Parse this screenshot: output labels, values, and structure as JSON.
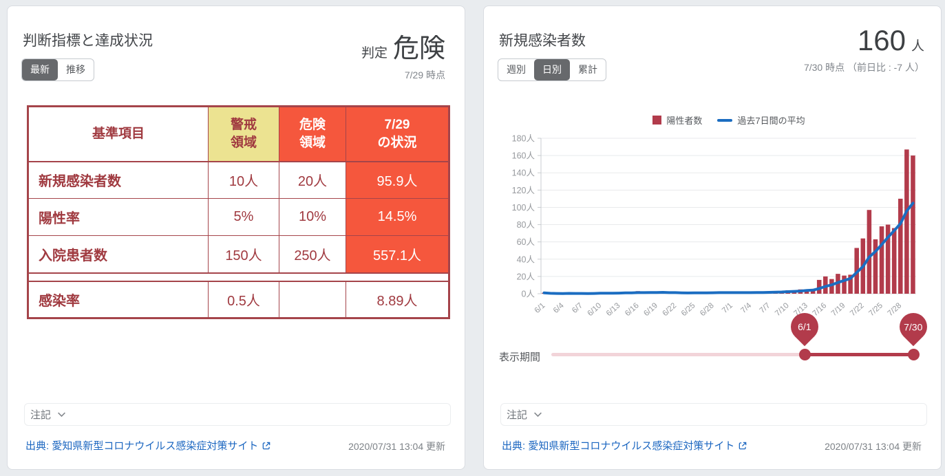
{
  "page": {
    "background": "#e9ecef"
  },
  "left_panel": {
    "title": "判断指標と達成状況",
    "view_tabs": [
      {
        "label": "最新",
        "selected": true
      },
      {
        "label": "推移",
        "selected": false
      }
    ],
    "verdict": {
      "label": "判定",
      "value": "危険",
      "as_of": "7/29 時点"
    },
    "table": {
      "headers": [
        {
          "label": "基準項目",
          "style": "plain"
        },
        {
          "label": "警戒\n領域",
          "style": "yellow"
        },
        {
          "label": "危険\n領域",
          "style": "orange"
        },
        {
          "label": "7/29\nの状況",
          "style": "orange"
        }
      ],
      "rows": [
        {
          "label": "新規感染者数",
          "warning": "10人",
          "danger": "20人",
          "current": "95.9人",
          "current_highlight": true,
          "separator_before": false
        },
        {
          "label": "陽性率",
          "warning": "5%",
          "danger": "10%",
          "current": "14.5%",
          "current_highlight": true,
          "separator_before": false
        },
        {
          "label": "入院患者数",
          "warning": "150人",
          "danger": "250人",
          "current": "557.1人",
          "current_highlight": true,
          "separator_before": false
        },
        {
          "label": "感染率",
          "warning": "0.5人",
          "danger": "",
          "current": "8.89人",
          "current_highlight": false,
          "separator_before": true
        }
      ]
    },
    "note_label": "注記",
    "source_text": "出典: 愛知県新型コロナウイルス感染症対策サイト",
    "updated": "2020/07/31 13:04 更新"
  },
  "right_panel": {
    "title": "新規感染者数",
    "view_tabs": [
      {
        "label": "週別",
        "selected": false
      },
      {
        "label": "日別",
        "selected": true
      },
      {
        "label": "累計",
        "selected": false
      }
    ],
    "headline": {
      "value": "160",
      "unit": "人",
      "as_of": "7/30 時点 （前日比 : -7 人）"
    },
    "legend": [
      {
        "label": "陽性者数",
        "marker": "square",
        "color": "#b23b4b"
      },
      {
        "label": "過去7日間の平均",
        "marker": "line",
        "color": "#1b6dc1"
      }
    ],
    "slider": {
      "label": "表示期間",
      "start_label": "6/1",
      "end_label": "7/30"
    },
    "note_label": "注記",
    "source_text": "出典: 愛知県新型コロナウイルス感染症対策サイト",
    "updated": "2020/07/31 13:04 更新"
  },
  "chart_data": {
    "type": "bar",
    "title": "新規感染者数",
    "x": [
      "6/1",
      "6/2",
      "6/3",
      "6/4",
      "6/5",
      "6/6",
      "6/7",
      "6/8",
      "6/9",
      "6/10",
      "6/11",
      "6/12",
      "6/13",
      "6/14",
      "6/15",
      "6/16",
      "6/17",
      "6/18",
      "6/19",
      "6/20",
      "6/21",
      "6/22",
      "6/23",
      "6/24",
      "6/25",
      "6/26",
      "6/27",
      "6/28",
      "6/29",
      "6/30",
      "7/1",
      "7/2",
      "7/3",
      "7/4",
      "7/5",
      "7/6",
      "7/7",
      "7/8",
      "7/9",
      "7/10",
      "7/11",
      "7/12",
      "7/13",
      "7/14",
      "7/15",
      "7/16",
      "7/17",
      "7/18",
      "7/19",
      "7/20",
      "7/21",
      "7/22",
      "7/23",
      "7/24",
      "7/25",
      "7/26",
      "7/27",
      "7/28",
      "7/29",
      "7/30"
    ],
    "series": [
      {
        "name": "陽性者数",
        "type": "bar",
        "color": "#b23b4b",
        "values": [
          1,
          0,
          0,
          0,
          1,
          0,
          0,
          0,
          1,
          2,
          0,
          1,
          1,
          2,
          0,
          3,
          2,
          1,
          1,
          2,
          0,
          0,
          1,
          1,
          2,
          1,
          2,
          1,
          1,
          1,
          1,
          2,
          1,
          2,
          2,
          1,
          2,
          3,
          3,
          4,
          4,
          5,
          5,
          5,
          16,
          20,
          17,
          23,
          21,
          22,
          53,
          64,
          97,
          63,
          78,
          80,
          76,
          110,
          167,
          160
        ]
      },
      {
        "name": "過去7日間の平均",
        "type": "line",
        "color": "#1b6dc1",
        "derivation": "trailing-7-day-average-of-bars"
      }
    ],
    "ylim": [
      0,
      180
    ],
    "ytick_step": 20,
    "y_unit": "人",
    "xtick_every": 3,
    "grid": "horizontal",
    "legend_position": "top"
  }
}
